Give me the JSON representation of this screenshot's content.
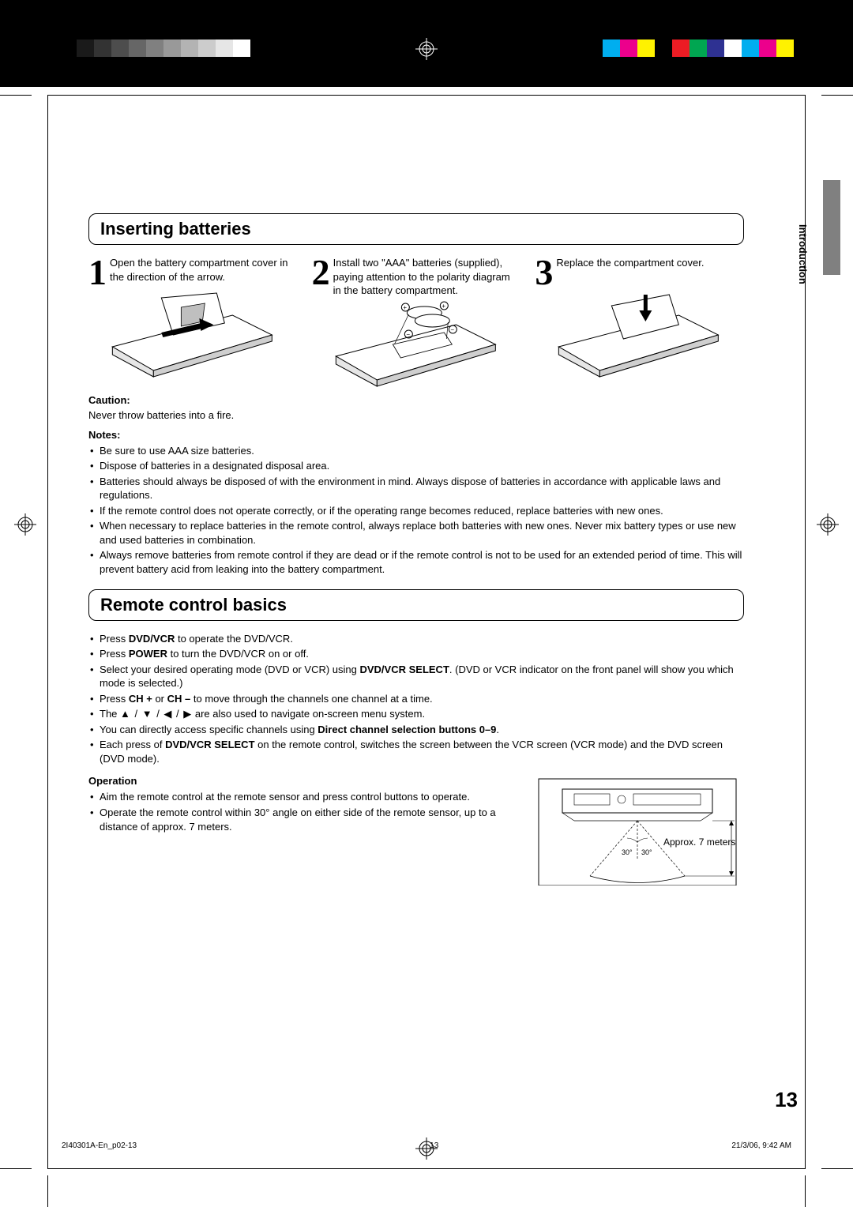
{
  "print_swatches_left": [
    "#000000",
    "#1a1a1a",
    "#333333",
    "#4d4d4d",
    "#666666",
    "#808080",
    "#999999",
    "#b3b3b3",
    "#cccccc",
    "#e6e6e6",
    "#ffffff"
  ],
  "print_swatches_right": [
    "#00aeef",
    "#ec008c",
    "#fff200",
    "#000000",
    "#ed1c24",
    "#00a651",
    "#2e3192",
    "#ffffff",
    "#00aeef",
    "#ec008c",
    "#fff200"
  ],
  "side_label": "Introduction",
  "section1_title": "Inserting batteries",
  "steps": [
    {
      "num": "1",
      "text": "Open the battery compartment cover in the direction of the arrow."
    },
    {
      "num": "2",
      "text": "Install two \"AAA\" batteries (supplied), paying attention to the polarity diagram in the battery compartment."
    },
    {
      "num": "3",
      "text": "Replace the compartment cover."
    }
  ],
  "caution_hd": "Caution:",
  "caution_text": "Never throw batteries into a fire.",
  "notes_hd": "Notes:",
  "notes": [
    "Be sure to use AAA size batteries.",
    "Dispose of batteries in a designated disposal area.",
    "Batteries should always be disposed of with the environment in mind. Always dispose of batteries in accordance with applicable laws and regulations.",
    "If the remote control does not operate correctly, or if the operating range becomes reduced, replace batteries with new ones.",
    "When necessary to replace batteries in the remote control, always replace both batteries with new ones. Never mix battery types or use new and used batteries in combination.",
    "Always remove batteries from remote control if they are dead or if the remote control is not to be used for an extended period of time. This will prevent battery acid from leaking into the battery compartment."
  ],
  "section2_title": "Remote control basics",
  "basics": [
    {
      "pre": "Press ",
      "bold": "DVD/VCR",
      "post": " to operate the DVD/VCR."
    },
    {
      "pre": "Press ",
      "bold": "POWER",
      "post": " to turn the DVD/VCR on or off."
    },
    {
      "pre": "Select your desired operating mode (DVD or VCR) using ",
      "bold": "DVD/VCR SELECT",
      "post": ". (DVD or VCR indicator on the front panel will show you which mode is selected.)"
    },
    {
      "pre": "Press ",
      "bold": "CH +",
      "post": " or ",
      "bold2": "CH –",
      "post2": " to move through the channels one channel at a time."
    },
    {
      "pre": "The ",
      "arrows": "▲ / ▼ / ◀ / ▶",
      "post": " are also used to navigate on-screen menu system."
    },
    {
      "pre": "You can directly access specific channels using ",
      "bold": "Direct channel selection buttons 0–9",
      "post": "."
    },
    {
      "pre": "Each press of ",
      "bold": "DVD/VCR SELECT",
      "post": " on the remote control, switches the screen between the VCR screen (VCR mode) and the DVD screen (DVD mode)."
    }
  ],
  "operation_hd": "Operation",
  "operation_items": [
    "Aim the remote control at the remote sensor and press control buttons to operate.",
    "Operate the remote control within 30° angle on either side of the remote sensor, up to a distance of approx. 7 meters."
  ],
  "diagram_angle_left": "30°",
  "diagram_angle_right": "30°",
  "diagram_distance": "Approx. 7 meters",
  "page_number": "13",
  "footer_left": "2I40301A-En_p02-13",
  "footer_center": "13",
  "footer_right": "21/3/06, 9:42 AM"
}
